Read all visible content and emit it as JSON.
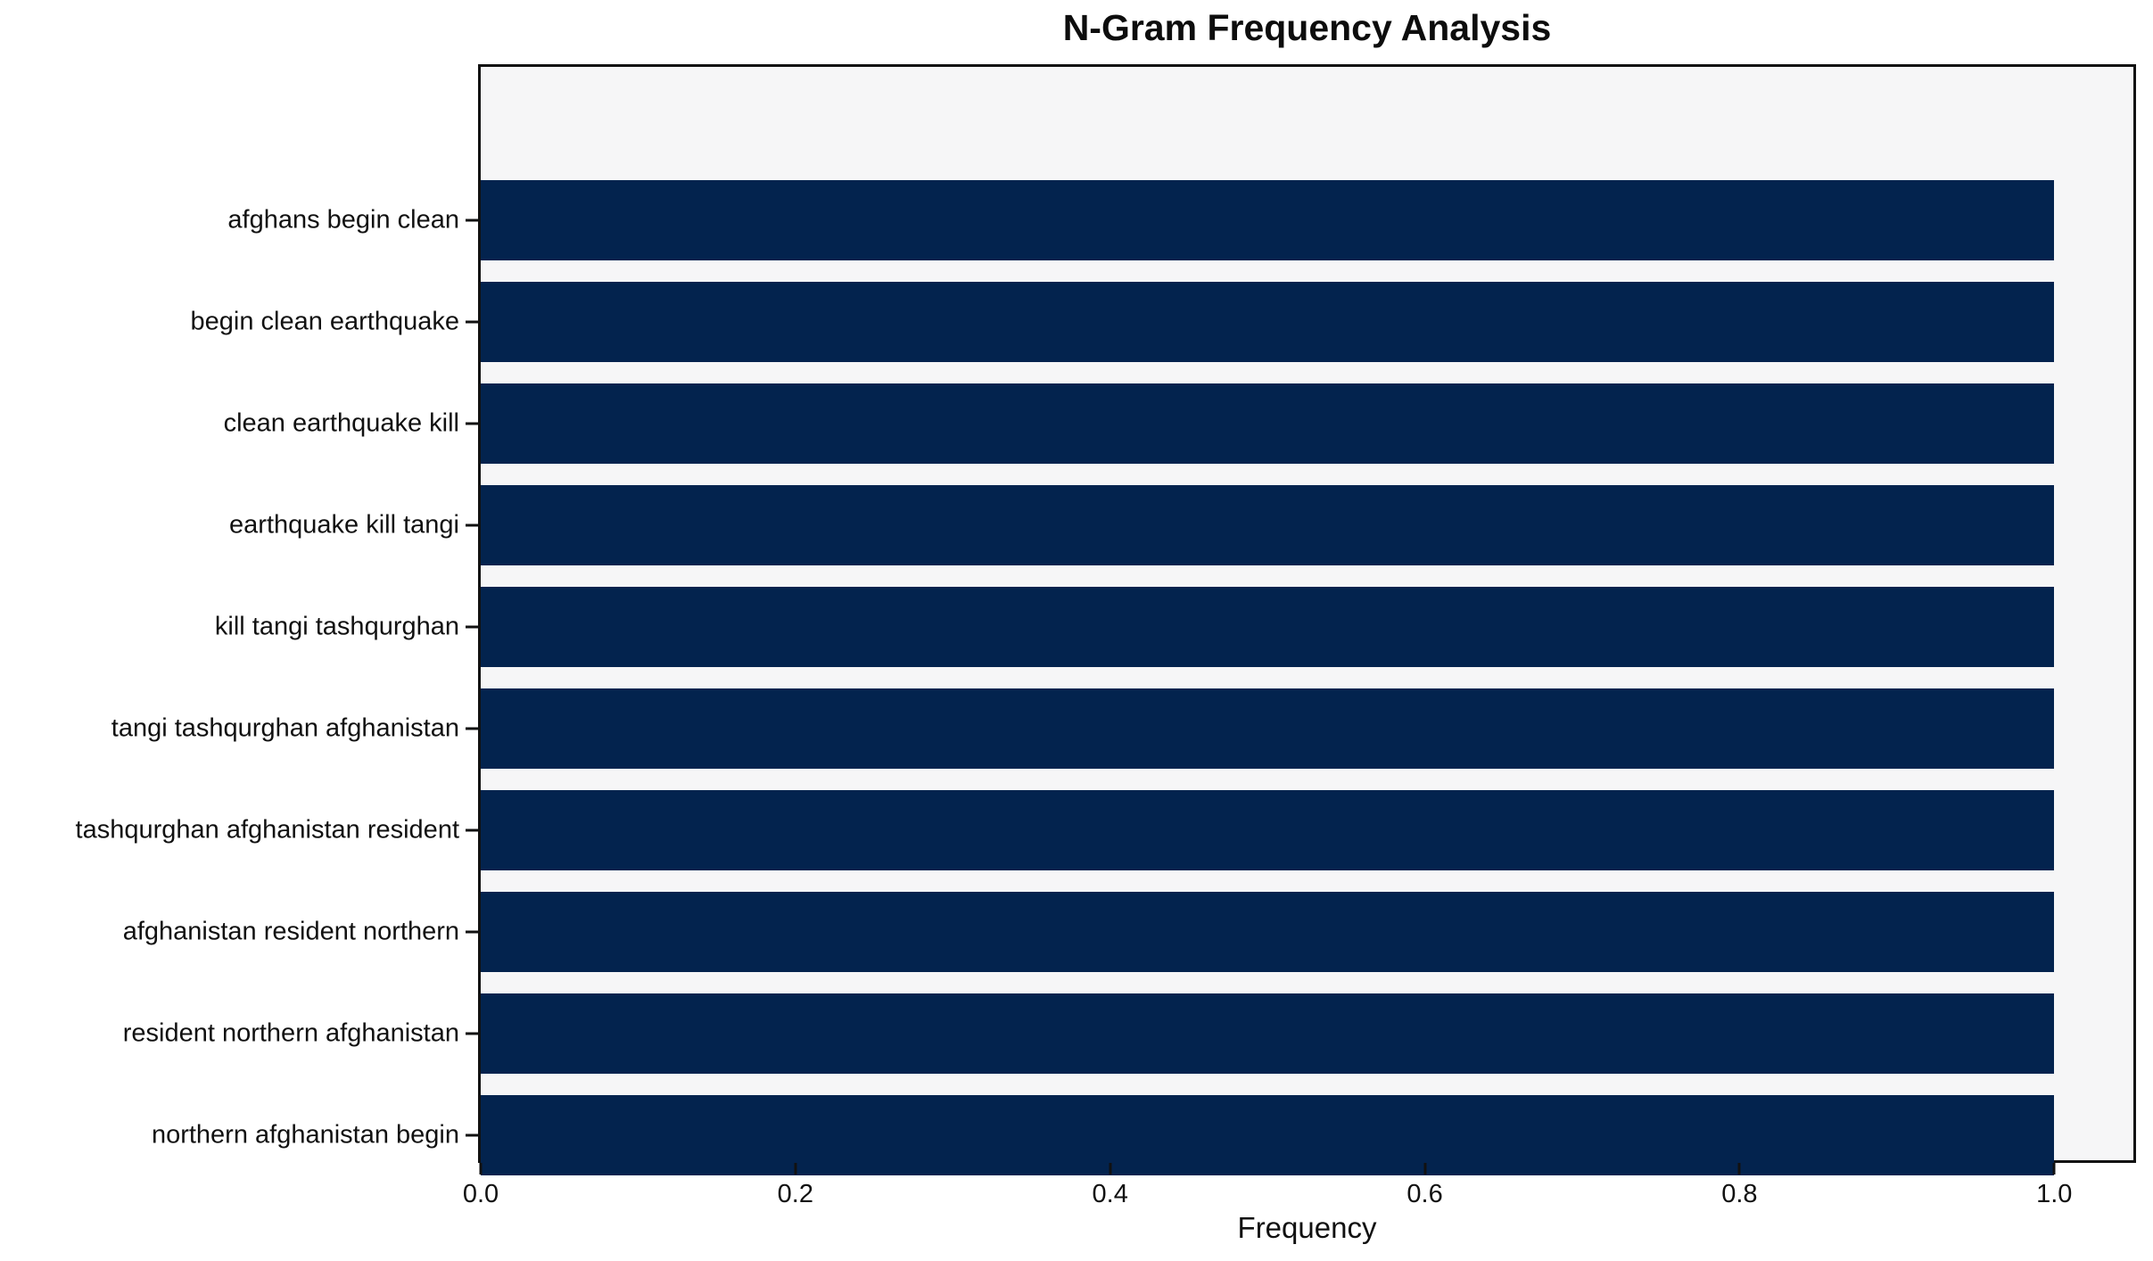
{
  "chart_data": {
    "type": "bar",
    "orientation": "horizontal",
    "title": "N-Gram Frequency Analysis",
    "xlabel": "Frequency",
    "ylabel": "",
    "categories": [
      "afghans begin clean",
      "begin clean earthquake",
      "clean earthquake kill",
      "earthquake kill tangi",
      "kill tangi tashqurghan",
      "tangi tashqurghan afghanistan",
      "tashqurghan afghanistan resident",
      "afghanistan resident northern",
      "resident northern afghanistan",
      "northern afghanistan begin"
    ],
    "values": [
      1.0,
      1.0,
      1.0,
      1.0,
      1.0,
      1.0,
      1.0,
      1.0,
      1.0,
      1.0
    ],
    "xticks": [
      0.0,
      0.2,
      0.4,
      0.6,
      0.8,
      1.0
    ],
    "xtick_labels": [
      "0.0",
      "0.2",
      "0.4",
      "0.6",
      "0.8",
      "1.0"
    ],
    "xlim": [
      0,
      1.0503
    ],
    "bar_color": "#03234e",
    "plot_background": "#f6f6f7",
    "page_background": "#ffffff",
    "axis_color": "#111111",
    "grid": false,
    "legend_position": "none"
  }
}
